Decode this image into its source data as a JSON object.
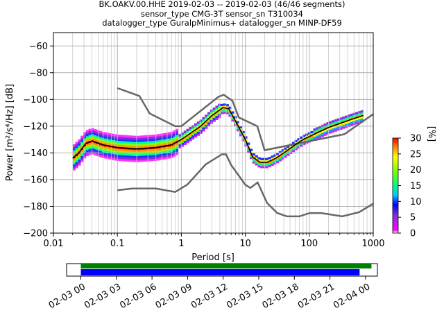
{
  "title_lines": [
    "BK.OAKV.00.HHE   2019-02-03 -- 2019-02-03  (46/46 segments)",
    "sensor_type CMG-3T sensor_sn T310034",
    "datalogger_type GuralpMinimus+ datalogger_sn MINP-DF59"
  ],
  "chart_data": {
    "type": "heatmap",
    "title": "BK.OAKV.00.HHE   2019-02-03 -- 2019-02-03  (46/46 segments)",
    "xlabel": "Period [s]",
    "ylabel": "Power [m²/s⁴/Hz] [dB]",
    "x_scale": "log",
    "xlim": [
      0.01,
      1000
    ],
    "ylim": [
      -200,
      -50
    ],
    "x_ticks": [
      0.01,
      0.1,
      1,
      10,
      100,
      1000
    ],
    "x_tick_labels": [
      "0.01",
      "0.1",
      "1",
      "10",
      "100",
      "1000"
    ],
    "y_ticks": [
      -200,
      -180,
      -160,
      -140,
      -120,
      -100,
      -80,
      -60
    ],
    "y_tick_labels": [
      "−200",
      "−180",
      "−160",
      "−140",
      "−120",
      "−100",
      "−80",
      "−60"
    ],
    "grid": true,
    "colorbar": {
      "label": "[%]",
      "range": [
        0,
        30
      ],
      "ticks": [
        0,
        5,
        10,
        15,
        20,
        25,
        30
      ],
      "tick_labels": [
        "0",
        "5",
        "10",
        "15",
        "20",
        "25",
        "30"
      ]
    },
    "mode_line": [
      [
        0.02,
        -144
      ],
      [
        0.025,
        -140
      ],
      [
        0.032,
        -133
      ],
      [
        0.04,
        -131
      ],
      [
        0.06,
        -134
      ],
      [
        0.1,
        -136
      ],
      [
        0.2,
        -137
      ],
      [
        0.4,
        -136
      ],
      [
        0.7,
        -134
      ],
      [
        1,
        -130
      ],
      [
        2,
        -120
      ],
      [
        3,
        -112
      ],
      [
        4.5,
        -106
      ],
      [
        5.5,
        -107
      ],
      [
        7,
        -116
      ],
      [
        10,
        -130
      ],
      [
        13,
        -143
      ],
      [
        17,
        -147
      ],
      [
        22,
        -147
      ],
      [
        30,
        -144
      ],
      [
        40,
        -140
      ],
      [
        60,
        -134
      ],
      [
        80,
        -130
      ],
      [
        120,
        -126
      ],
      [
        200,
        -121
      ],
      [
        300,
        -118
      ],
      [
        450,
        -115
      ],
      [
        700,
        -112
      ]
    ],
    "new_high_noise_model": [
      [
        0.1,
        -91.5
      ],
      [
        0.22,
        -97.4
      ],
      [
        0.32,
        -110.5
      ],
      [
        0.8,
        -120
      ],
      [
        1,
        -120
      ],
      [
        3.8,
        -98
      ],
      [
        4.6,
        -96.5
      ],
      [
        6.3,
        -101
      ],
      [
        7.9,
        -113.5
      ],
      [
        15.4,
        -120
      ],
      [
        20,
        -138
      ],
      [
        354.8,
        -126
      ],
      [
        1000,
        -111
      ]
    ],
    "new_low_noise_model": [
      [
        0.1,
        -168
      ],
      [
        0.17,
        -166.7
      ],
      [
        0.4,
        -166.7
      ],
      [
        0.8,
        -169.2
      ],
      [
        1.24,
        -163.7
      ],
      [
        2.4,
        -148.6
      ],
      [
        4.3,
        -141.1
      ],
      [
        5,
        -141.1
      ],
      [
        6,
        -149
      ],
      [
        10,
        -163.8
      ],
      [
        12,
        -166.2
      ],
      [
        15.6,
        -162.1
      ],
      [
        21.9,
        -177.5
      ],
      [
        31.6,
        -185
      ],
      [
        45,
        -187.5
      ],
      [
        70,
        -187.5
      ],
      [
        101,
        -185
      ],
      [
        154,
        -185
      ],
      [
        328,
        -187.5
      ],
      [
        600,
        -184.4
      ],
      [
        1000,
        -178
      ]
    ],
    "coverage_timeline": {
      "tick_labels": [
        "02-03 00",
        "02-03 03",
        "02-03 06",
        "02-03 09",
        "02-03 12",
        "02-03 15",
        "02-03 18",
        "02-03 21",
        "02-04 00"
      ],
      "range_hours": [
        -1.2,
        25.0
      ],
      "data_coverage": {
        "start_hour": 0.0,
        "end_hour": 24.5,
        "color": "#008000"
      },
      "processed_psd": {
        "start_hour": 0.0,
        "end_hour": 23.5,
        "color": "#0000ff"
      }
    }
  }
}
